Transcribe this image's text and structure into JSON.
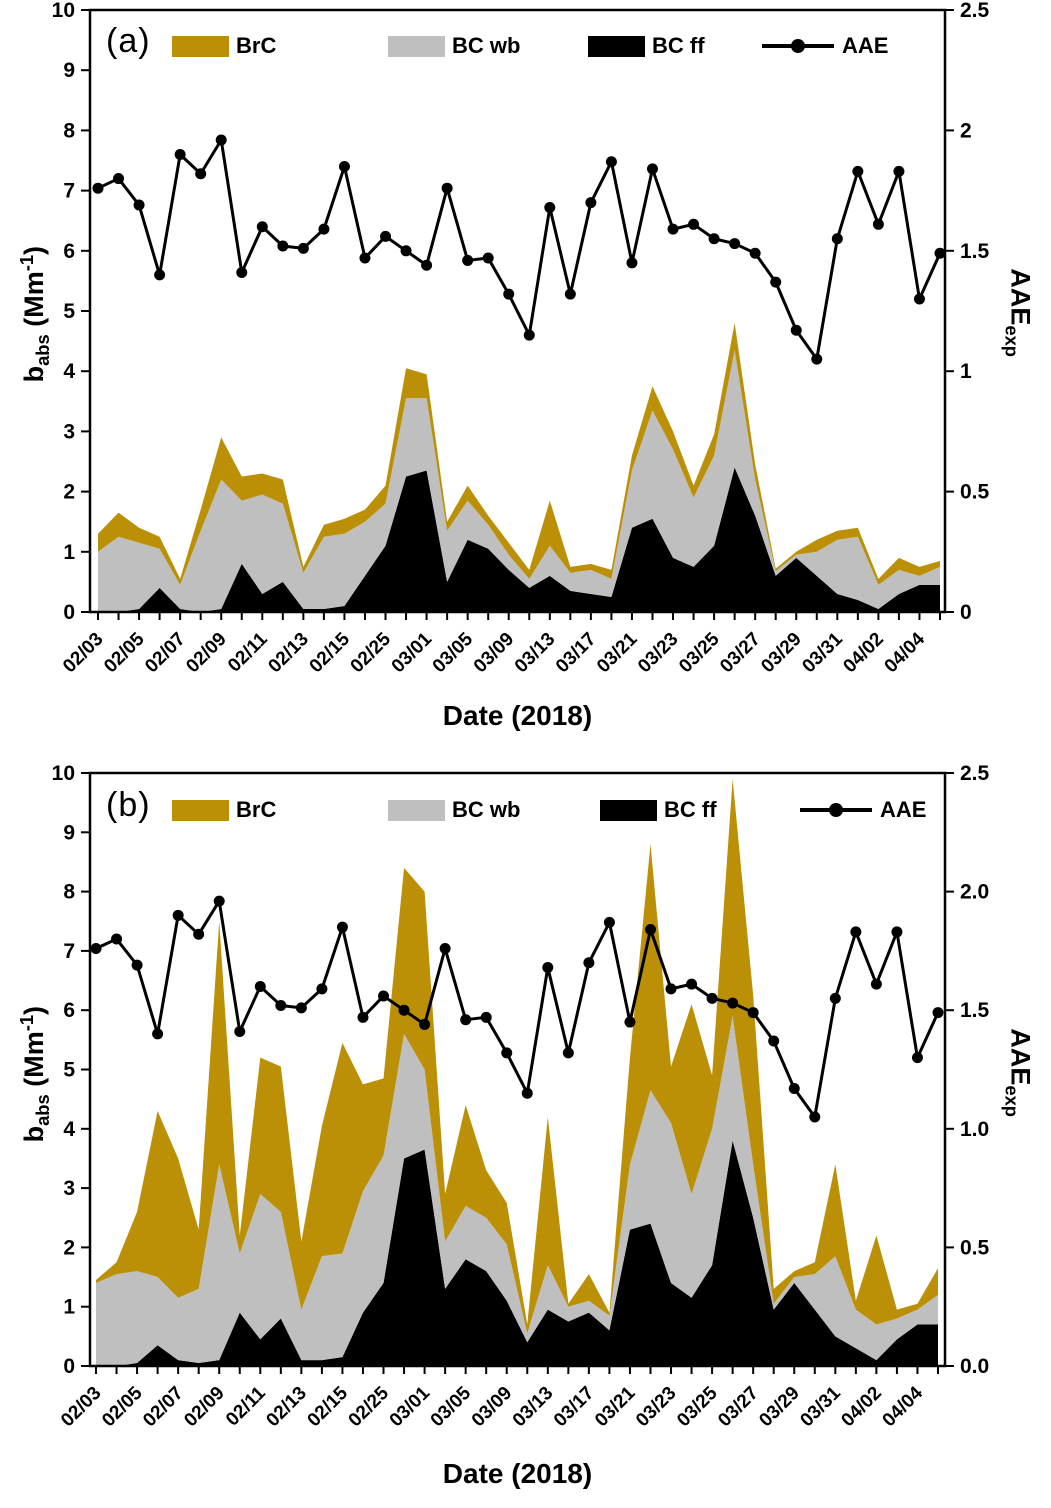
{
  "figure": {
    "x_axis_title": "Date (2018)",
    "left_axis_title": {
      "pre": "b",
      "sub": "abs",
      "mid": " (Mm",
      "sup": "-1",
      "post": ")"
    },
    "right_axis_title": {
      "pre": "AAE",
      "sub": "exp"
    },
    "legend": {
      "brc": "BrC",
      "bcwb": "BC wb",
      "bcff": "BC ff",
      "aae": "AAE"
    },
    "colors": {
      "brc": "#BC9006",
      "bcwb": "#BFBFBF",
      "bcff": "#000000",
      "aae_line": "#000000"
    }
  },
  "panels": [
    {
      "id": "a",
      "letter": "(a)",
      "left_ticks": [
        "0",
        "1",
        "2",
        "3",
        "4",
        "5",
        "6",
        "7",
        "8",
        "9",
        "10"
      ],
      "right_ticks": [
        "0",
        "0.5",
        "1",
        "1.5",
        "2",
        "2.5"
      ]
    },
    {
      "id": "b",
      "letter": "(b)",
      "left_ticks": [
        "0",
        "1",
        "2",
        "3",
        "4",
        "5",
        "6",
        "7",
        "8",
        "9",
        "10"
      ],
      "right_ticks": [
        "0.0",
        "0.5",
        "1.0",
        "1.5",
        "2.0",
        "2.5"
      ]
    }
  ],
  "chart_data": [
    {
      "type": "area",
      "panel": "a",
      "stacked": true,
      "title": "",
      "xlabel": "Date (2018)",
      "ylabel": "b_abs (Mm-1)",
      "y2label": "AAE_exp",
      "ylim": [
        0,
        10
      ],
      "y2lim": [
        0,
        2.5
      ],
      "grid": false,
      "legend_position": "top-inside",
      "x_tick_labels": [
        "02/03",
        "02/05",
        "02/07",
        "02/09",
        "02/11",
        "02/13",
        "02/15",
        "02/25",
        "03/01",
        "03/05",
        "03/09",
        "03/13",
        "03/17",
        "03/21",
        "03/23",
        "03/25",
        "03/27",
        "03/29",
        "03/31",
        "04/02",
        "04/04"
      ],
      "label_every_n_points": 2,
      "n_points": 42,
      "series": [
        {
          "name": "BC ff",
          "role": "area-bottom",
          "color": "#000000",
          "values": [
            0,
            0,
            0.05,
            0.4,
            0.05,
            0,
            0.05,
            0.8,
            0.3,
            0.5,
            0.05,
            0.05,
            0.1,
            0.6,
            1.1,
            2.25,
            2.35,
            0.5,
            1.2,
            1.05,
            0.7,
            0.4,
            0.6,
            0.35,
            0.3,
            0.25,
            1.4,
            1.55,
            0.9,
            0.75,
            1.1,
            2.4,
            1.6,
            0.6,
            0.9,
            0.6,
            0.3,
            0.2,
            0.05,
            0.3,
            0.45,
            0.45
          ]
        },
        {
          "name": "BC wb",
          "role": "area-middle",
          "color": "#BFBFBF",
          "values": [
            1.0,
            1.25,
            1.1,
            0.65,
            0.4,
            1.35,
            2.15,
            1.05,
            1.65,
            1.3,
            0.6,
            1.2,
            1.2,
            0.9,
            0.7,
            1.3,
            1.2,
            0.85,
            0.65,
            0.4,
            0.25,
            0.15,
            0.5,
            0.3,
            0.4,
            0.3,
            0.95,
            1.8,
            1.8,
            1.15,
            1.5,
            1.95,
            0.6,
            0.08,
            0.05,
            0.4,
            0.9,
            1.05,
            0.4,
            0.4,
            0.15,
            0.3
          ]
        },
        {
          "name": "BrC",
          "role": "area-top",
          "color": "#BC9006",
          "values": [
            0.3,
            0.4,
            0.25,
            0.2,
            0.1,
            0.35,
            0.7,
            0.4,
            0.35,
            0.4,
            0.1,
            0.2,
            0.25,
            0.2,
            0.3,
            0.5,
            0.4,
            0.15,
            0.25,
            0.15,
            0.2,
            0.15,
            0.75,
            0.1,
            0.1,
            0.15,
            0.25,
            0.4,
            0.3,
            0.2,
            0.35,
            0.45,
            0.25,
            0.04,
            0.05,
            0.2,
            0.15,
            0.15,
            0.1,
            0.2,
            0.15,
            0.1
          ]
        },
        {
          "name": "AAE",
          "role": "line",
          "axis": "right",
          "color": "#000000",
          "marker": "circle",
          "values": [
            1.76,
            1.8,
            1.69,
            1.4,
            1.9,
            1.82,
            1.96,
            1.41,
            1.6,
            1.52,
            1.51,
            1.59,
            1.85,
            1.47,
            1.56,
            1.5,
            1.44,
            1.76,
            1.46,
            1.47,
            1.32,
            1.15,
            1.68,
            1.32,
            1.7,
            1.87,
            1.45,
            1.84,
            1.59,
            1.61,
            1.55,
            1.53,
            1.49,
            1.37,
            1.17,
            1.05,
            1.55,
            1.83,
            1.61,
            1.83,
            1.3,
            1.49
          ]
        }
      ]
    },
    {
      "type": "area",
      "panel": "b",
      "stacked": true,
      "title": "",
      "xlabel": "Date (2018)",
      "ylabel": "b_abs (Mm-1)",
      "y2label": "AAE_exp",
      "ylim": [
        0,
        10
      ],
      "y2lim": [
        0,
        2.5
      ],
      "grid": false,
      "legend_position": "top-inside",
      "x_tick_labels": [
        "02/03",
        "02/05",
        "02/07",
        "02/09",
        "02/11",
        "02/13",
        "02/15",
        "02/25",
        "03/01",
        "03/05",
        "03/09",
        "03/13",
        "03/17",
        "03/21",
        "03/23",
        "03/25",
        "03/27",
        "03/29",
        "03/31",
        "04/02",
        "04/04"
      ],
      "label_every_n_points": 2,
      "n_points": 42,
      "series": [
        {
          "name": "BC ff",
          "role": "area-bottom",
          "color": "#000000",
          "values": [
            0,
            0,
            0.05,
            0.35,
            0.1,
            0.05,
            0.1,
            0.9,
            0.45,
            0.8,
            0.1,
            0.1,
            0.15,
            0.9,
            1.4,
            3.5,
            3.65,
            1.3,
            1.8,
            1.6,
            1.1,
            0.4,
            0.95,
            0.75,
            0.9,
            0.6,
            2.3,
            2.4,
            1.4,
            1.15,
            1.7,
            3.8,
            2.5,
            0.95,
            1.4,
            0.95,
            0.5,
            0.3,
            0.1,
            0.45,
            0.7,
            0.7
          ]
        },
        {
          "name": "BC wb",
          "role": "area-middle",
          "color": "#BFBFBF",
          "values": [
            1.4,
            1.55,
            1.55,
            1.15,
            1.05,
            1.25,
            3.3,
            1.0,
            2.45,
            1.8,
            0.85,
            1.75,
            1.75,
            2.05,
            2.15,
            2.1,
            1.35,
            0.8,
            0.9,
            0.9,
            0.95,
            0.15,
            0.75,
            0.25,
            0.2,
            0.25,
            1.1,
            2.25,
            2.7,
            1.75,
            2.3,
            2.1,
            0.9,
            0.1,
            0.1,
            0.6,
            1.35,
            0.65,
            0.6,
            0.35,
            0.25,
            0.5
          ]
        },
        {
          "name": "BrC",
          "role": "area-top",
          "color": "#BC9006",
          "values": [
            0.05,
            0.2,
            1.0,
            2.8,
            2.35,
            1.0,
            4.1,
            0.3,
            2.3,
            2.45,
            1.15,
            2.2,
            3.55,
            1.8,
            1.3,
            2.8,
            3.0,
            0.8,
            1.7,
            0.8,
            0.7,
            0.15,
            2.5,
            0.05,
            0.45,
            0.05,
            1.8,
            4.15,
            0.95,
            3.2,
            0.9,
            4.0,
            2.85,
            0.25,
            0.1,
            0.2,
            1.55,
            0.15,
            1.5,
            0.15,
            0.1,
            0.45
          ]
        },
        {
          "name": "AAE",
          "role": "line",
          "axis": "right",
          "color": "#000000",
          "marker": "circle",
          "values": [
            1.76,
            1.8,
            1.69,
            1.4,
            1.9,
            1.82,
            1.96,
            1.41,
            1.6,
            1.52,
            1.51,
            1.59,
            1.85,
            1.47,
            1.56,
            1.5,
            1.44,
            1.76,
            1.46,
            1.47,
            1.32,
            1.15,
            1.68,
            1.32,
            1.7,
            1.87,
            1.45,
            1.84,
            1.59,
            1.61,
            1.55,
            1.53,
            1.49,
            1.37,
            1.17,
            1.05,
            1.55,
            1.83,
            1.61,
            1.83,
            1.3,
            1.49
          ]
        }
      ]
    }
  ]
}
